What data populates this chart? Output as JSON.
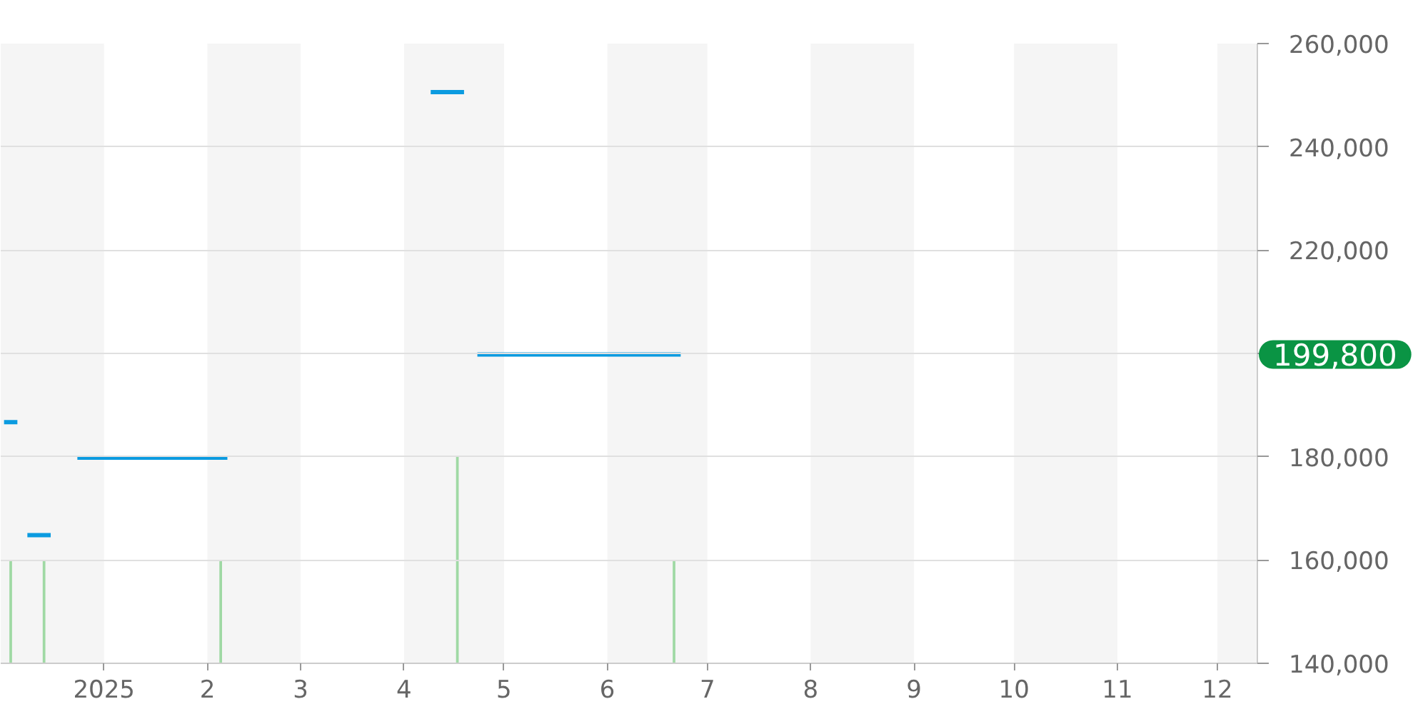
{
  "chart_data": {
    "type": "line",
    "xlim": [
      "2024-12-01",
      "2025-12-13"
    ],
    "ylim": [
      140000,
      260000
    ],
    "xticks": [
      {
        "value": "2025-01-01",
        "label": "2025"
      },
      {
        "value": "2025-02-01",
        "label": "2"
      },
      {
        "value": "2025-03-01",
        "label": "3"
      },
      {
        "value": "2025-04-01",
        "label": "4"
      },
      {
        "value": "2025-05-01",
        "label": "5"
      },
      {
        "value": "2025-06-01",
        "label": "6"
      },
      {
        "value": "2025-07-01",
        "label": "7"
      },
      {
        "value": "2025-08-01",
        "label": "8"
      },
      {
        "value": "2025-09-01",
        "label": "9"
      },
      {
        "value": "2025-10-01",
        "label": "10"
      },
      {
        "value": "2025-11-01",
        "label": "11"
      },
      {
        "value": "2025-12-01",
        "label": "12"
      }
    ],
    "yticks": [
      {
        "value": 140000,
        "label": "140,000"
      },
      {
        "value": 160000,
        "label": "160,000"
      },
      {
        "value": 180000,
        "label": "180,000"
      },
      {
        "value": 200000,
        "label": null
      },
      {
        "value": 220000,
        "label": "220,000"
      },
      {
        "value": 240000,
        "label": "240,000"
      },
      {
        "value": 260000,
        "label": "260,000"
      }
    ],
    "grid": "y",
    "series": [
      {
        "color": "#0b9be0",
        "x": [
          "2024-12-02",
          "2024-12-06",
          "2024-12-07",
          "2024-12-09",
          "2024-12-16",
          "2024-12-20",
          "2024-12-24",
          "2025-02-07",
          "2025-03-01",
          "2025-04-09",
          "2025-04-19",
          "2025-04-21",
          "2025-04-23",
          "2025-06-23"
        ],
        "values": [
          186700,
          186700,
          null,
          164800,
          164800,
          null,
          179800,
          179800,
          null,
          250600,
          250600,
          null,
          199800,
          199800
        ]
      },
      {
        "type": "bar",
        "color": "#9fd9a4",
        "x": [
          "2024-12-04",
          "2024-12-14",
          "2025-02-05",
          "2025-04-17",
          "2025-06-21"
        ],
        "values": [
          160000,
          160000,
          160000,
          180000,
          160000
        ]
      }
    ],
    "bands": [
      {
        "axis": "x",
        "from": "2024-12-01",
        "to": "2025-01-01",
        "color": "#f5f5f5"
      },
      {
        "axis": "x",
        "from": "2025-02-01",
        "to": "2025-03-01",
        "color": "#f5f5f5"
      },
      {
        "axis": "x",
        "from": "2025-04-01",
        "to": "2025-05-01",
        "color": "#f5f5f5"
      },
      {
        "axis": "x",
        "from": "2025-06-01",
        "to": "2025-07-01",
        "color": "#f5f5f5"
      },
      {
        "axis": "x",
        "from": "2025-08-01",
        "to": "2025-09-01",
        "color": "#f5f5f5"
      },
      {
        "axis": "x",
        "from": "2025-10-01",
        "to": "2025-11-01",
        "color": "#f5f5f5"
      },
      {
        "axis": "x",
        "from": "2025-12-01",
        "to": "2025-12-13",
        "color": "#f5f5f5"
      }
    ],
    "annotations": [
      "199,800"
    ]
  }
}
